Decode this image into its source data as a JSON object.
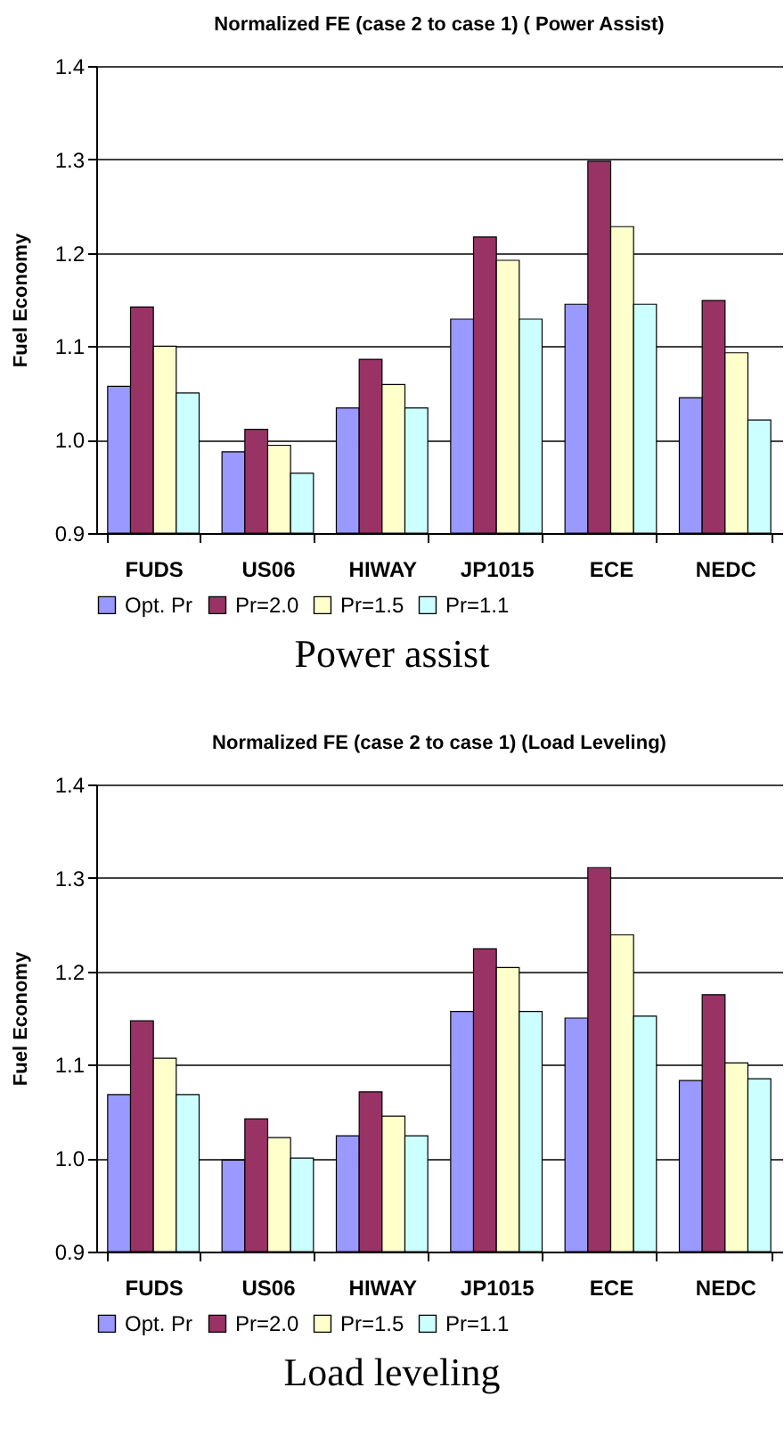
{
  "chart_data": [
    {
      "type": "bar",
      "title": "Normalized FE (case 2 to case 1) ( Power Assist)",
      "ylabel": "Fuel Economy",
      "categories": [
        "FUDS",
        "US06",
        "HIWAY",
        "JP1015",
        "ECE",
        "NEDC"
      ],
      "series": [
        {
          "name": "Opt. Pr",
          "color": "#9999ff",
          "values": [
            1.057,
            0.987,
            1.034,
            1.129,
            1.145,
            1.045
          ]
        },
        {
          "name": "Pr=2.0",
          "color": "#993366",
          "values": [
            1.142,
            1.011,
            1.086,
            1.217,
            1.298,
            1.149
          ]
        },
        {
          "name": "Pr=1.5",
          "color": "#ffffcc",
          "values": [
            1.1,
            0.994,
            1.059,
            1.192,
            1.228,
            1.093
          ]
        },
        {
          "name": "Pr=1.1",
          "color": "#ccffff",
          "values": [
            1.05,
            0.964,
            1.034,
            1.129,
            1.145,
            1.021
          ]
        }
      ],
      "ylim": [
        0.9,
        1.4
      ],
      "yticks": [
        0.9,
        {
          "value": 1,
          "label": "1.0"
        },
        1.1,
        1.2,
        1.3,
        1.4
      ],
      "grid": "y",
      "legend": "bottom",
      "annotations": [
        "Power assist"
      ]
    },
    {
      "type": "bar",
      "title": "Normalized FE (case 2 to case 1)  (Load Leveling)",
      "ylabel": "Fuel Economy",
      "categories": [
        "FUDS",
        "US06",
        "HIWAY",
        "JP1015",
        "ECE",
        "NEDC"
      ],
      "series": [
        {
          "name": "Opt. Pr",
          "color": "#9999ff",
          "values": [
            1.068,
            0.998,
            1.024,
            1.157,
            1.15,
            1.083
          ]
        },
        {
          "name": "Pr=2.0",
          "color": "#993366",
          "values": [
            1.147,
            1.042,
            1.071,
            1.224,
            1.311,
            1.175
          ]
        },
        {
          "name": "Pr=1.5",
          "color": "#ffffcc",
          "values": [
            1.107,
            1.022,
            1.045,
            1.204,
            1.239,
            1.102
          ]
        },
        {
          "name": "Pr=1.1",
          "color": "#ccffff",
          "values": [
            1.068,
            1.0,
            1.024,
            1.157,
            1.152,
            1.085
          ]
        }
      ],
      "ylim": [
        0.9,
        1.4
      ],
      "yticks": [
        0.9,
        {
          "value": 1,
          "label": "1.0"
        },
        1.1,
        1.2,
        1.3,
        1.4
      ],
      "grid": "y",
      "legend": "bottom",
      "annotations": [
        "Load leveling"
      ]
    }
  ]
}
